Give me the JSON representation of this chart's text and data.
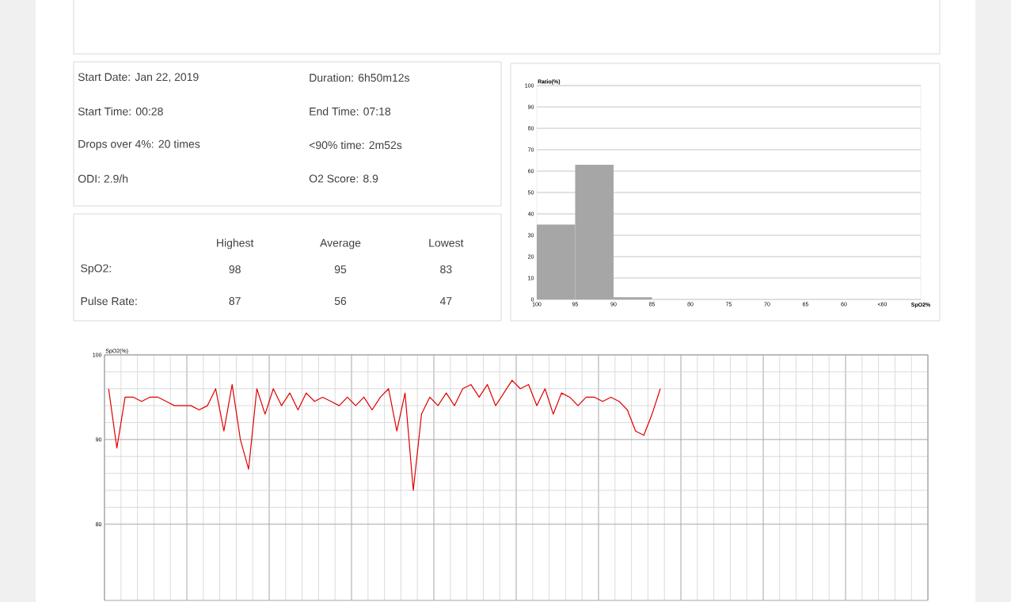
{
  "chart_data": [
    {
      "type": "other",
      "annotations": [
        "Start Date: Jan 22, 2019",
        "Duration: 6h50m12s",
        "Start Time: 00:28",
        "End Time: 07:18",
        "Drops over 4%: 20 times",
        "<90% time: 2m52s",
        "ODI: 2.9/h",
        "O2 Score: 8.9"
      ]
    },
    {
      "type": "heatmap",
      "categories": [
        "Highest",
        "Average",
        "Lowest"
      ],
      "y_categories": [
        "SpO2:",
        "Pulse Rate:"
      ],
      "cells": [
        [
          98,
          95,
          83
        ],
        [
          87,
          56,
          47
        ]
      ],
      "data_labels": true
    },
    {
      "type": "histogram",
      "bins": [
        100,
        95,
        90,
        85,
        80,
        75,
        70,
        65,
        60,
        55
      ],
      "values": [
        35,
        63,
        1,
        0,
        0,
        0,
        0,
        0,
        0
      ],
      "color": "#a6a6a6",
      "xlim": [
        100,
        50
      ],
      "xticks": [
        100,
        95,
        90,
        85,
        80,
        75,
        70,
        65,
        60,
        {
          "value": 55,
          "label": "<60"
        }
      ],
      "ylim": [
        0,
        100
      ],
      "yticks": [
        0,
        10,
        20,
        30,
        40,
        50,
        60,
        70,
        80,
        90,
        100
      ],
      "xlabel": "SpO2%",
      "ylabel": "Ratio(%)",
      "grid": "y"
    },
    {
      "type": "line",
      "categories": [
        null,
        null,
        null,
        null,
        null,
        null,
        null,
        null,
        null,
        null,
        null,
        null,
        null,
        null,
        null,
        null,
        null,
        null,
        null,
        null,
        null,
        null,
        null,
        null,
        null,
        null,
        null,
        null,
        null,
        null,
        null,
        null,
        null,
        null,
        null,
        null,
        null,
        null,
        null,
        null,
        null,
        null,
        null,
        null,
        null,
        null,
        null,
        null,
        null,
        null,
        null,
        null,
        null,
        null,
        null,
        null,
        null,
        null,
        null,
        null,
        null,
        null,
        null,
        null,
        null,
        null,
        null,
        null,
        null,
        null,
        null,
        null,
        null,
        null,
        null,
        null,
        null,
        null,
        null,
        null,
        null,
        null,
        null,
        null,
        null,
        null,
        null,
        null,
        null,
        null,
        null,
        null,
        null,
        null,
        null,
        null,
        null,
        null,
        null,
        null
      ],
      "values": [
        96,
        89,
        95,
        95,
        94.5,
        95,
        95,
        94.5,
        94,
        94,
        94,
        93.5,
        94,
        96,
        91,
        96.5,
        90,
        86.5,
        96,
        93,
        96,
        94,
        95.5,
        93.5,
        95.5,
        94.5,
        95,
        94.5,
        94,
        95,
        94,
        95,
        93.5,
        95,
        96,
        91,
        95.5,
        84,
        93,
        95,
        94,
        95.5,
        94,
        96,
        96.5,
        95,
        96.5,
        94,
        95.5,
        97,
        96,
        96.5,
        94,
        96,
        93,
        95.5,
        95,
        94,
        95,
        95,
        94.5,
        95,
        94.5,
        93.5,
        91,
        90.5,
        93,
        96,
        null,
        null,
        null,
        null,
        null,
        null,
        null,
        null,
        null,
        null,
        null,
        null,
        null,
        null,
        null,
        null,
        null,
        null,
        null,
        null,
        null,
        null,
        null,
        null,
        null,
        null,
        null,
        null,
        null,
        null,
        null,
        null
      ],
      "color": "#e00000",
      "ylim": [
        71,
        100
      ],
      "yticks": [
        80,
        90,
        100
      ],
      "ylabel": "SpO2(%)",
      "grid": true,
      "tick_labels": "y"
    }
  ]
}
